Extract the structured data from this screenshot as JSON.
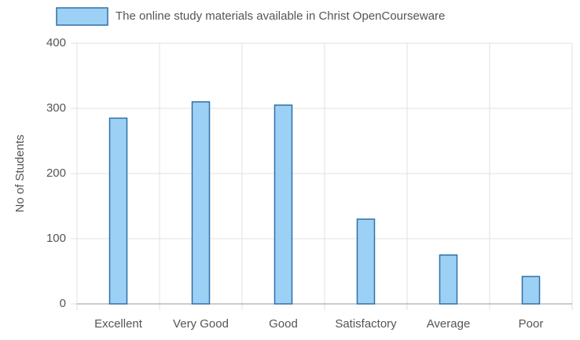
{
  "chart_data": {
    "type": "bar",
    "legend": "The online study materials available in Christ OpenCourseware",
    "y_label": "No of Students",
    "categories": [
      "Excellent",
      "Very Good",
      "Good",
      "Satisfactory",
      "Average",
      "Poor"
    ],
    "values": [
      285,
      310,
      305,
      130,
      75,
      42
    ],
    "color": "#9dd0f5",
    "border_color": "#2f70a8",
    "ylim": [
      0,
      400
    ],
    "yticks": [
      0,
      100,
      200,
      300,
      400
    ],
    "grid": true
  }
}
